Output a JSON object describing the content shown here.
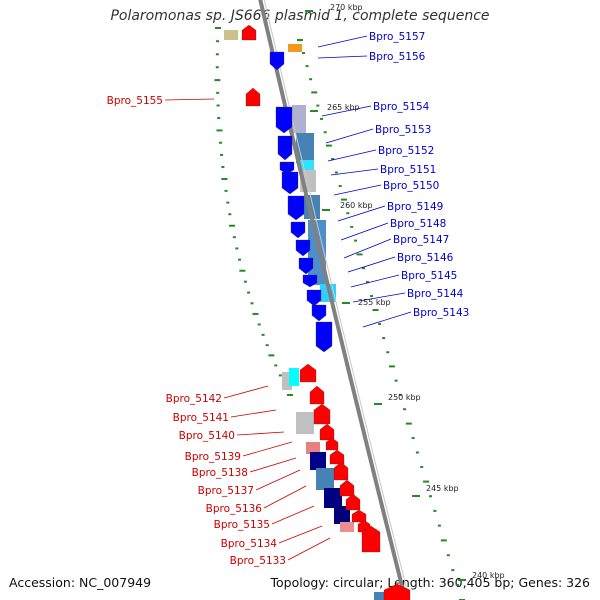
{
  "title": "Polaromonas sp. JS666 plasmid 1, complete sequence",
  "footer": {
    "accession": "Accession: NC_007949",
    "topology": "Topology: circular; Length: 360,405 bp; Genes: 326"
  },
  "colors": {
    "forward_gene": "#ff0000",
    "reverse_gene": "#0000ff",
    "forward_label": "#cc0000",
    "reverse_label": "#0000cc",
    "backbone": "#808080",
    "gc_dots": "#228b22"
  },
  "scale_ticks": [
    "270 kbp",
    "265 kbp",
    "260 kbp",
    "255 kbp",
    "250 kbp",
    "245 kbp",
    "240 kbp"
  ],
  "reverse_labels": [
    "Bpro_5157",
    "Bpro_5156",
    "Bpro_5154",
    "Bpro_5153",
    "Bpro_5152",
    "Bpro_5151",
    "Bpro_5150",
    "Bpro_5149",
    "Bpro_5148",
    "Bpro_5147",
    "Bpro_5146",
    "Bpro_5145",
    "Bpro_5144",
    "Bpro_5143"
  ],
  "forward_labels": [
    "Bpro_5155",
    "Bpro_5142",
    "Bpro_5141",
    "Bpro_5140",
    "Bpro_5139",
    "Bpro_5138",
    "Bpro_5137",
    "Bpro_5136",
    "Bpro_5135",
    "Bpro_5134",
    "Bpro_5133"
  ]
}
